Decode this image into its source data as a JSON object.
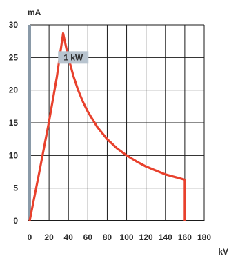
{
  "chart_data": {
    "type": "line",
    "xlabel": "kV",
    "ylabel": "mA",
    "xlim": [
      0,
      180
    ],
    "ylim": [
      0,
      30
    ],
    "x_ticks": [
      0,
      20,
      40,
      60,
      80,
      100,
      120,
      140,
      160,
      180
    ],
    "y_ticks": [
      0,
      5,
      10,
      15,
      20,
      25,
      30
    ],
    "x_grid_step": 20,
    "y_grid_step": 5,
    "grid": true,
    "annotation": {
      "text": "1 kW",
      "x": 45,
      "y": 25
    },
    "series": [
      {
        "color": "#e8412d",
        "points": [
          [
            0,
            0
          ],
          [
            10,
            7.5
          ],
          [
            20,
            15.2
          ],
          [
            28,
            22.0
          ],
          [
            34.5,
            28.7
          ],
          [
            38,
            26.3
          ],
          [
            40,
            25.0
          ],
          [
            45,
            22.2
          ],
          [
            50,
            20.0
          ],
          [
            55,
            18.2
          ],
          [
            60,
            16.7
          ],
          [
            70,
            14.3
          ],
          [
            80,
            12.5
          ],
          [
            90,
            11.1
          ],
          [
            100,
            10.0
          ],
          [
            110,
            9.1
          ],
          [
            120,
            8.3
          ],
          [
            130,
            7.7
          ],
          [
            140,
            7.1
          ],
          [
            150,
            6.7
          ],
          [
            160,
            6.3
          ],
          [
            160,
            0
          ]
        ]
      }
    ]
  },
  "colors": {
    "line": "#e8412d",
    "grid": "#1a1a1a",
    "axis_bar": "#8a9aa8",
    "annotation_bg": "#b8c4cf"
  }
}
